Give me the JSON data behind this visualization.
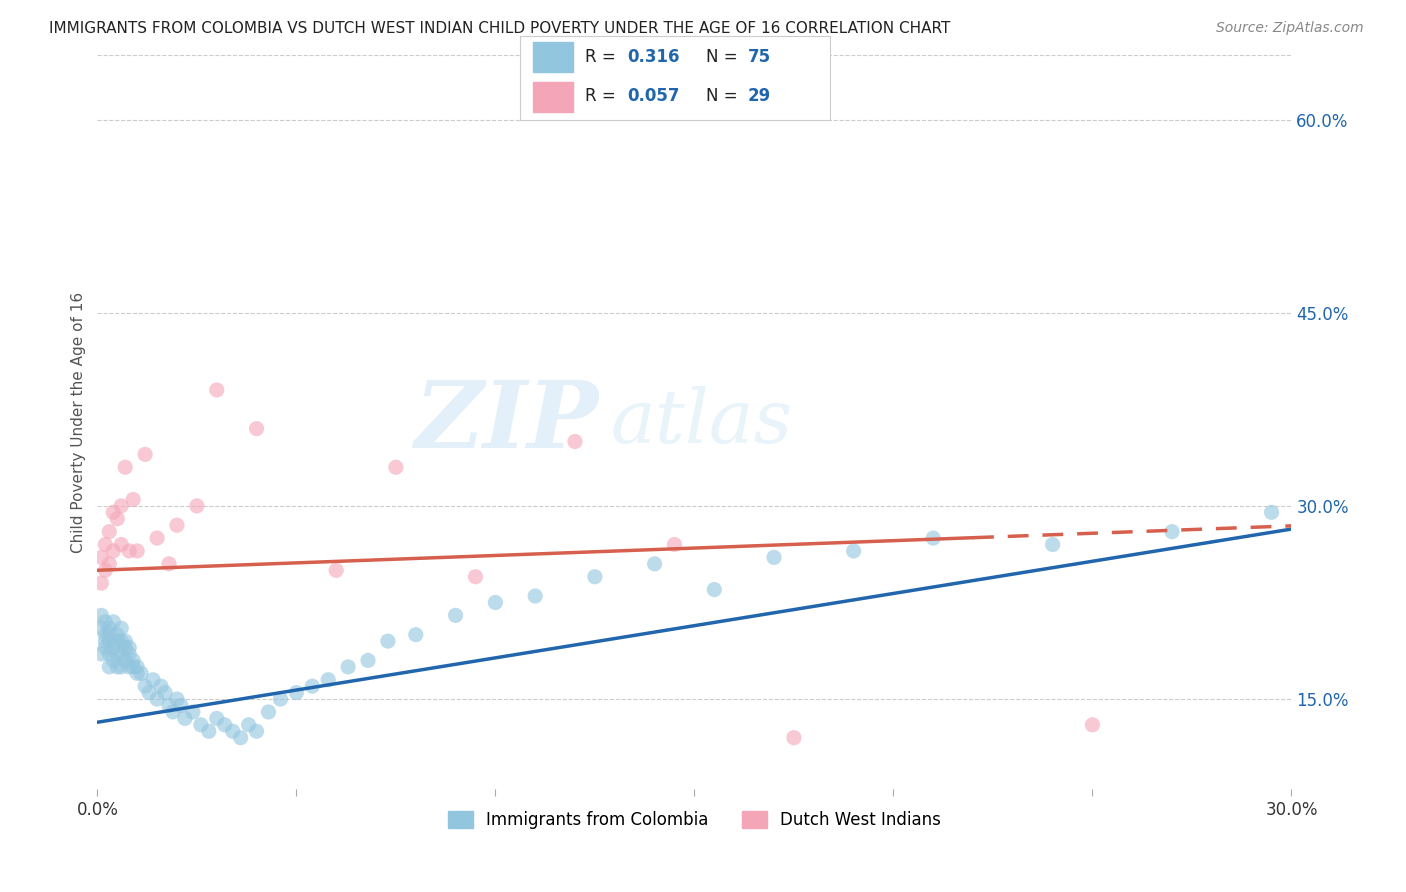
{
  "title": "IMMIGRANTS FROM COLOMBIA VS DUTCH WEST INDIAN CHILD POVERTY UNDER THE AGE OF 16 CORRELATION CHART",
  "source": "Source: ZipAtlas.com",
  "ylabel": "Child Poverty Under the Age of 16",
  "watermark": "ZIPatlas",
  "xlim": [
    0.0,
    0.3
  ],
  "ylim": [
    0.08,
    0.65
  ],
  "xticks": [
    0.0,
    0.05,
    0.1,
    0.15,
    0.2,
    0.25,
    0.3
  ],
  "yticks_right": [
    0.15,
    0.3,
    0.45,
    0.6
  ],
  "ytick_labels_right": [
    "15.0%",
    "30.0%",
    "45.0%",
    "60.0%"
  ],
  "blue_color": "#92c5de",
  "pink_color": "#f4a6b8",
  "blue_line_color": "#2166ac",
  "pink_line_color": "#d6604d",
  "legend_label1": "Immigrants from Colombia",
  "legend_label2": "Dutch West Indians",
  "blue_x": [
    0.001,
    0.001,
    0.001,
    0.002,
    0.002,
    0.002,
    0.002,
    0.003,
    0.003,
    0.003,
    0.003,
    0.003,
    0.004,
    0.004,
    0.004,
    0.005,
    0.005,
    0.005,
    0.005,
    0.006,
    0.006,
    0.006,
    0.006,
    0.007,
    0.007,
    0.007,
    0.008,
    0.008,
    0.008,
    0.009,
    0.009,
    0.01,
    0.01,
    0.011,
    0.012,
    0.013,
    0.014,
    0.015,
    0.016,
    0.017,
    0.018,
    0.019,
    0.02,
    0.021,
    0.022,
    0.024,
    0.026,
    0.028,
    0.03,
    0.032,
    0.034,
    0.036,
    0.038,
    0.04,
    0.043,
    0.046,
    0.05,
    0.054,
    0.058,
    0.063,
    0.068,
    0.073,
    0.08,
    0.09,
    0.1,
    0.11,
    0.125,
    0.14,
    0.155,
    0.17,
    0.19,
    0.21,
    0.24,
    0.27,
    0.295
  ],
  "blue_y": [
    0.185,
    0.205,
    0.215,
    0.19,
    0.2,
    0.195,
    0.21,
    0.195,
    0.205,
    0.185,
    0.175,
    0.2,
    0.18,
    0.19,
    0.21,
    0.185,
    0.195,
    0.2,
    0.175,
    0.185,
    0.195,
    0.205,
    0.175,
    0.19,
    0.195,
    0.18,
    0.185,
    0.175,
    0.19,
    0.175,
    0.18,
    0.17,
    0.175,
    0.17,
    0.16,
    0.155,
    0.165,
    0.15,
    0.16,
    0.155,
    0.145,
    0.14,
    0.15,
    0.145,
    0.135,
    0.14,
    0.13,
    0.125,
    0.135,
    0.13,
    0.125,
    0.12,
    0.13,
    0.125,
    0.14,
    0.15,
    0.155,
    0.16,
    0.165,
    0.175,
    0.18,
    0.195,
    0.2,
    0.215,
    0.225,
    0.23,
    0.245,
    0.255,
    0.235,
    0.26,
    0.265,
    0.275,
    0.27,
    0.28,
    0.295
  ],
  "pink_x": [
    0.001,
    0.001,
    0.002,
    0.002,
    0.003,
    0.003,
    0.004,
    0.004,
    0.005,
    0.006,
    0.006,
    0.007,
    0.008,
    0.009,
    0.01,
    0.012,
    0.015,
    0.018,
    0.02,
    0.025,
    0.03,
    0.04,
    0.06,
    0.075,
    0.095,
    0.12,
    0.145,
    0.175,
    0.25
  ],
  "pink_y": [
    0.24,
    0.26,
    0.25,
    0.27,
    0.28,
    0.255,
    0.295,
    0.265,
    0.29,
    0.27,
    0.3,
    0.33,
    0.265,
    0.305,
    0.265,
    0.34,
    0.275,
    0.255,
    0.285,
    0.3,
    0.39,
    0.36,
    0.25,
    0.33,
    0.245,
    0.35,
    0.27,
    0.12,
    0.13
  ]
}
